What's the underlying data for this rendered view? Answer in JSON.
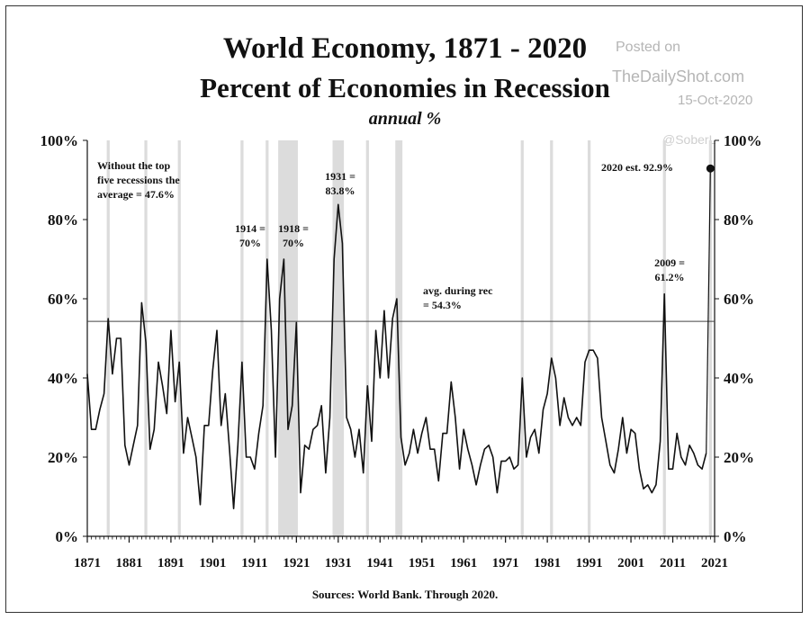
{
  "title_line1": "World Economy, 1871 - 2020",
  "title_line2": "Percent of Economies in Recession",
  "subtitle": "annual %",
  "watermark": {
    "line1": "Posted on",
    "line2": "TheDailyShot.com",
    "line3": "15-Oct-2020",
    "line4": "@SoberL"
  },
  "source": "Sources: World Bank. Through 2020.",
  "chart_data": {
    "type": "line",
    "x_range": [
      1871,
      2021
    ],
    "ylim": [
      0,
      100
    ],
    "y_ticks": [
      "0%",
      "20%",
      "40%",
      "60%",
      "80%",
      "100%"
    ],
    "x_ticks": [
      "1871",
      "1881",
      "1891",
      "1901",
      "1911",
      "1921",
      "1931",
      "1941",
      "1951",
      "1961",
      "1971",
      "1981",
      "1991",
      "2001",
      "2011",
      "2021"
    ],
    "grid": false,
    "recession_bands": [
      [
        1876,
        1876
      ],
      [
        1885,
        1885
      ],
      [
        1893,
        1893
      ],
      [
        1908,
        1908
      ],
      [
        1914,
        1914
      ],
      [
        1917,
        1921
      ],
      [
        1930,
        1932
      ],
      [
        1938,
        1938
      ],
      [
        1945,
        1946
      ],
      [
        1975,
        1975
      ],
      [
        1982,
        1982
      ],
      [
        1991,
        1991
      ],
      [
        2009,
        2009
      ],
      [
        2020,
        2020
      ]
    ],
    "series": [
      {
        "values": [
          [
            1871,
            41
          ],
          [
            1872,
            27
          ],
          [
            1873,
            27
          ],
          [
            1874,
            32
          ],
          [
            1875,
            36
          ],
          [
            1876,
            55
          ],
          [
            1877,
            41
          ],
          [
            1878,
            50
          ],
          [
            1879,
            50
          ],
          [
            1880,
            23
          ],
          [
            1881,
            18
          ],
          [
            1882,
            23
          ],
          [
            1883,
            28
          ],
          [
            1884,
            59
          ],
          [
            1885,
            49
          ],
          [
            1886,
            22
          ],
          [
            1887,
            27
          ],
          [
            1888,
            44
          ],
          [
            1889,
            38
          ],
          [
            1890,
            31
          ],
          [
            1891,
            52
          ],
          [
            1892,
            34
          ],
          [
            1893,
            44
          ],
          [
            1894,
            21
          ],
          [
            1895,
            30
          ],
          [
            1896,
            25
          ],
          [
            1897,
            20
          ],
          [
            1898,
            8
          ],
          [
            1899,
            28
          ],
          [
            1900,
            28
          ],
          [
            1901,
            42
          ],
          [
            1902,
            52
          ],
          [
            1903,
            28
          ],
          [
            1904,
            36
          ],
          [
            1905,
            22
          ],
          [
            1906,
            7
          ],
          [
            1907,
            23
          ],
          [
            1908,
            44
          ],
          [
            1909,
            20
          ],
          [
            1910,
            20
          ],
          [
            1911,
            17
          ],
          [
            1912,
            26
          ],
          [
            1913,
            33
          ],
          [
            1914,
            70
          ],
          [
            1915,
            52
          ],
          [
            1916,
            20
          ],
          [
            1917,
            60
          ],
          [
            1918,
            70
          ],
          [
            1919,
            27
          ],
          [
            1920,
            33
          ],
          [
            1921,
            54
          ],
          [
            1922,
            11
          ],
          [
            1923,
            23
          ],
          [
            1924,
            22
          ],
          [
            1925,
            27
          ],
          [
            1926,
            28
          ],
          [
            1927,
            33
          ],
          [
            1928,
            16
          ],
          [
            1929,
            30
          ],
          [
            1930,
            70
          ],
          [
            1931,
            83.8
          ],
          [
            1932,
            74
          ],
          [
            1933,
            30
          ],
          [
            1934,
            27
          ],
          [
            1935,
            20
          ],
          [
            1936,
            27
          ],
          [
            1937,
            16
          ],
          [
            1938,
            38
          ],
          [
            1939,
            24
          ],
          [
            1940,
            52
          ],
          [
            1941,
            40
          ],
          [
            1942,
            57
          ],
          [
            1943,
            40
          ],
          [
            1944,
            55
          ],
          [
            1945,
            60
          ],
          [
            1946,
            25
          ],
          [
            1947,
            18
          ],
          [
            1948,
            21
          ],
          [
            1949,
            27
          ],
          [
            1950,
            21
          ],
          [
            1951,
            26
          ],
          [
            1952,
            30
          ],
          [
            1953,
            22
          ],
          [
            1954,
            22
          ],
          [
            1955,
            14
          ],
          [
            1956,
            26
          ],
          [
            1957,
            26
          ],
          [
            1958,
            39
          ],
          [
            1959,
            30
          ],
          [
            1960,
            17
          ],
          [
            1961,
            27
          ],
          [
            1962,
            22
          ],
          [
            1963,
            18
          ],
          [
            1964,
            13
          ],
          [
            1965,
            18
          ],
          [
            1966,
            22
          ],
          [
            1967,
            23
          ],
          [
            1968,
            20
          ],
          [
            1969,
            11
          ],
          [
            1970,
            19
          ],
          [
            1971,
            19
          ],
          [
            1972,
            20
          ],
          [
            1973,
            17
          ],
          [
            1974,
            18
          ],
          [
            1975,
            40
          ],
          [
            1976,
            20
          ],
          [
            1977,
            25
          ],
          [
            1978,
            27
          ],
          [
            1979,
            21
          ],
          [
            1980,
            32
          ],
          [
            1981,
            36
          ],
          [
            1982,
            45
          ],
          [
            1983,
            40
          ],
          [
            1984,
            28
          ],
          [
            1985,
            35
          ],
          [
            1986,
            30
          ],
          [
            1987,
            28
          ],
          [
            1988,
            30
          ],
          [
            1989,
            28
          ],
          [
            1990,
            44
          ],
          [
            1991,
            47
          ],
          [
            1992,
            47
          ],
          [
            1993,
            45
          ],
          [
            1994,
            30
          ],
          [
            1995,
            24
          ],
          [
            1996,
            18
          ],
          [
            1997,
            16
          ],
          [
            1998,
            22
          ],
          [
            1999,
            30
          ],
          [
            2000,
            21
          ],
          [
            2001,
            27
          ],
          [
            2002,
            26
          ],
          [
            2003,
            17
          ],
          [
            2004,
            12
          ],
          [
            2005,
            13
          ],
          [
            2006,
            11
          ],
          [
            2007,
            13
          ],
          [
            2008,
            24
          ],
          [
            2009,
            61.2
          ],
          [
            2010,
            17
          ],
          [
            2011,
            17
          ],
          [
            2012,
            26
          ],
          [
            2013,
            20
          ],
          [
            2014,
            18
          ],
          [
            2015,
            23
          ],
          [
            2016,
            21
          ],
          [
            2017,
            18
          ],
          [
            2018,
            17
          ],
          [
            2019,
            21
          ]
        ]
      }
    ],
    "estimate_point": {
      "x": 2020,
      "y": 92.9
    },
    "reference_line": {
      "y": 54.3
    },
    "annotations": [
      {
        "text": [
          "Without the top",
          "five recessions the",
          "average = 47.6%"
        ]
      },
      {
        "text": [
          "1914 =",
          "70%"
        ]
      },
      {
        "text": [
          "1918 =",
          "70%"
        ]
      },
      {
        "text": [
          "1931 =",
          "83.8%"
        ]
      },
      {
        "text": [
          "avg. during rec",
          "= 54.3%"
        ]
      },
      {
        "text": [
          "2009 =",
          "61.2%"
        ]
      },
      {
        "text": [
          "2020 est. 92.9%"
        ]
      }
    ]
  }
}
